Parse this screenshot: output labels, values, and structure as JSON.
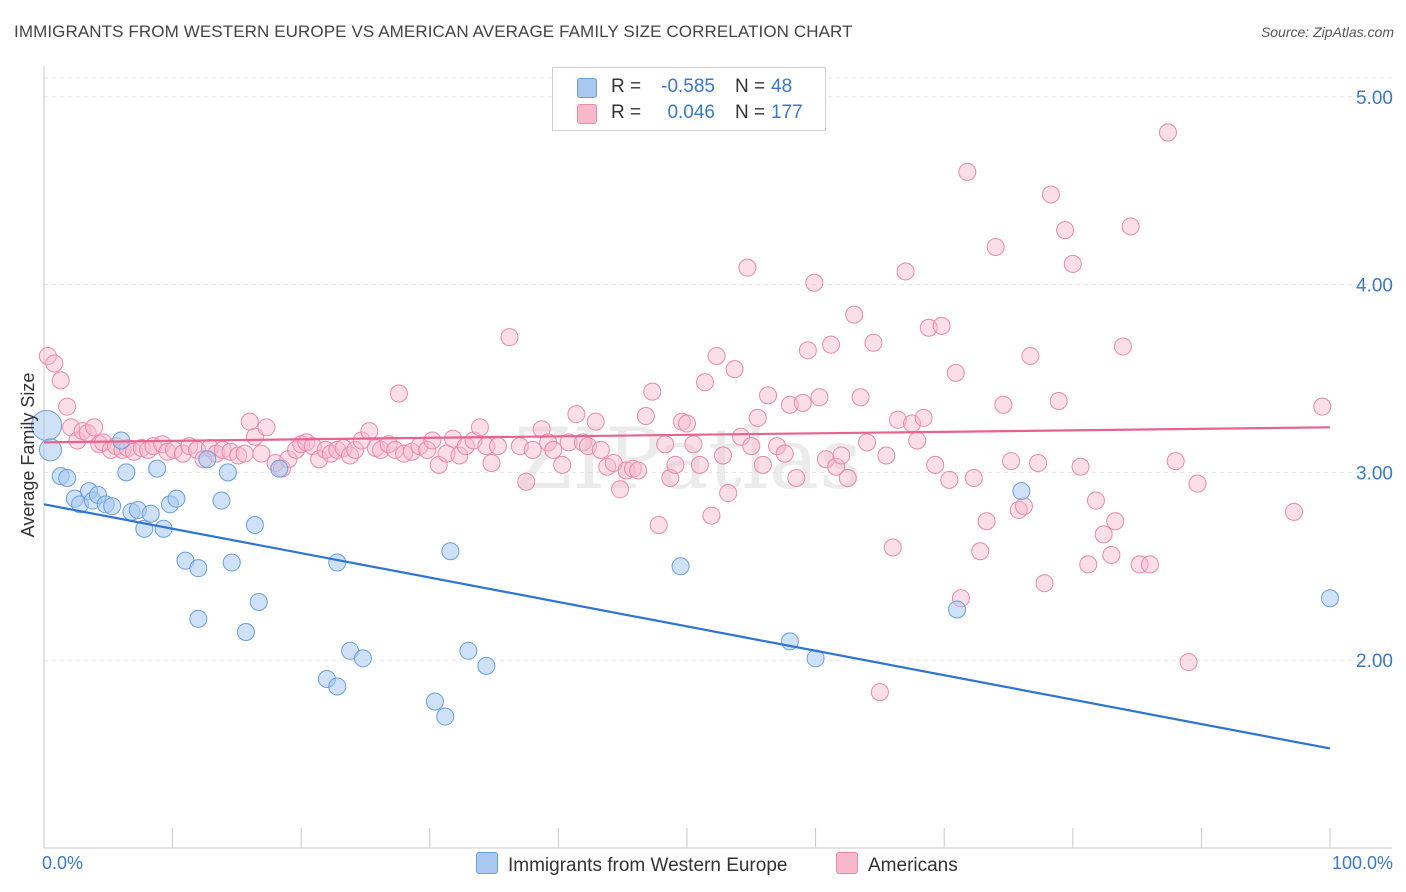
{
  "title": "IMMIGRANTS FROM WESTERN EUROPE VS AMERICAN AVERAGE FAMILY SIZE CORRELATION CHART",
  "source": "Source: ZipAtlas.com",
  "watermark": "ZIPatlas",
  "legend": {
    "rows": [
      {
        "r_label": "R =",
        "r_value": "-0.585",
        "n_label": "N =",
        "n_value": "48",
        "color": "#a8c8f0",
        "border": "#6a9fd8"
      },
      {
        "r_label": "R =",
        "r_value": "0.046",
        "n_label": "N =",
        "n_value": "177",
        "color": "#f7b8cb",
        "border": "#e88aa8"
      }
    ]
  },
  "bottom_legend": {
    "series1": "Immigrants from Western Europe",
    "series2": "Americans"
  },
  "chart_data": {
    "type": "scatter",
    "title": "IMMIGRANTS FROM WESTERN EUROPE VS AMERICAN AVERAGE FAMILY SIZE CORRELATION CHART",
    "xlabel": "",
    "ylabel": "Average Family Size",
    "xlim": [
      0,
      100
    ],
    "ylim": [
      1.0,
      5.1
    ],
    "x_tick_labels": [
      "0.0%",
      "100.0%"
    ],
    "y_ticks": [
      2.0,
      3.0,
      4.0,
      5.0
    ],
    "y_tick_labels": [
      "2.00",
      "3.00",
      "4.00",
      "5.00"
    ],
    "grid": true,
    "series": [
      {
        "name": "Immigrants from Western Europe",
        "color": "#a8c8f0",
        "stroke": "#6a9fd8",
        "trend_color": "#2f74d0",
        "trend": {
          "x": [
            0,
            100
          ],
          "y": [
            2.83,
            1.53
          ]
        },
        "points": [
          [
            0.2,
            3.25
          ],
          [
            0.5,
            3.12
          ],
          [
            1.3,
            2.98
          ],
          [
            1.8,
            2.97
          ],
          [
            2.4,
            2.86
          ],
          [
            2.8,
            2.83
          ],
          [
            3.5,
            2.9
          ],
          [
            3.8,
            2.85
          ],
          [
            4.2,
            2.88
          ],
          [
            4.8,
            2.83
          ],
          [
            5.3,
            2.82
          ],
          [
            6.0,
            3.17
          ],
          [
            6.4,
            3.0
          ],
          [
            6.8,
            2.79
          ],
          [
            7.3,
            2.8
          ],
          [
            7.8,
            2.7
          ],
          [
            8.3,
            2.78
          ],
          [
            8.8,
            3.02
          ],
          [
            9.3,
            2.7
          ],
          [
            9.8,
            2.83
          ],
          [
            10.3,
            2.86
          ],
          [
            11.0,
            2.53
          ],
          [
            12.0,
            2.49
          ],
          [
            12.0,
            2.22
          ],
          [
            12.7,
            3.07
          ],
          [
            13.8,
            2.85
          ],
          [
            14.3,
            3.0
          ],
          [
            14.6,
            2.52
          ],
          [
            15.7,
            2.15
          ],
          [
            16.4,
            2.72
          ],
          [
            16.7,
            2.31
          ],
          [
            18.3,
            3.02
          ],
          [
            22.0,
            1.9
          ],
          [
            22.8,
            1.86
          ],
          [
            22.8,
            2.52
          ],
          [
            23.8,
            2.05
          ],
          [
            24.8,
            2.01
          ],
          [
            30.4,
            1.78
          ],
          [
            31.2,
            1.7
          ],
          [
            31.6,
            2.58
          ],
          [
            33.0,
            2.05
          ],
          [
            34.4,
            1.97
          ],
          [
            49.5,
            2.5
          ],
          [
            58.0,
            2.1
          ],
          [
            60.0,
            2.01
          ],
          [
            71.0,
            2.27
          ],
          [
            76.0,
            2.9
          ],
          [
            100.0,
            2.33
          ]
        ]
      },
      {
        "name": "Americans",
        "color": "#f7b8cb",
        "stroke": "#e88aa8",
        "trend_color": "#e8628e",
        "trend": {
          "x": [
            0,
            100
          ],
          "y": [
            3.16,
            3.24
          ]
        },
        "points": [
          [
            0.3,
            3.62
          ],
          [
            0.8,
            3.58
          ],
          [
            1.3,
            3.49
          ],
          [
            1.8,
            3.35
          ],
          [
            2.1,
            3.24
          ],
          [
            2.6,
            3.17
          ],
          [
            3.0,
            3.22
          ],
          [
            3.4,
            3.21
          ],
          [
            3.9,
            3.24
          ],
          [
            4.3,
            3.15
          ],
          [
            4.6,
            3.16
          ],
          [
            5.2,
            3.12
          ],
          [
            5.6,
            3.14
          ],
          [
            6.1,
            3.12
          ],
          [
            6.5,
            3.13
          ],
          [
            7.0,
            3.11
          ],
          [
            7.6,
            3.13
          ],
          [
            8.1,
            3.12
          ],
          [
            8.5,
            3.14
          ],
          [
            9.2,
            3.15
          ],
          [
            9.6,
            3.11
          ],
          [
            10.1,
            3.12
          ],
          [
            10.8,
            3.1
          ],
          [
            11.3,
            3.14
          ],
          [
            11.9,
            3.12
          ],
          [
            12.4,
            3.07
          ],
          [
            12.9,
            3.13
          ],
          [
            13.4,
            3.1
          ],
          [
            13.9,
            3.12
          ],
          [
            14.5,
            3.11
          ],
          [
            15.1,
            3.09
          ],
          [
            15.6,
            3.1
          ],
          [
            16.0,
            3.27
          ],
          [
            16.4,
            3.19
          ],
          [
            16.9,
            3.1
          ],
          [
            17.3,
            3.24
          ],
          [
            18.0,
            3.05
          ],
          [
            18.5,
            3.02
          ],
          [
            19.0,
            3.07
          ],
          [
            19.6,
            3.12
          ],
          [
            20.0,
            3.15
          ],
          [
            20.4,
            3.16
          ],
          [
            20.9,
            3.14
          ],
          [
            21.4,
            3.07
          ],
          [
            21.9,
            3.12
          ],
          [
            22.3,
            3.1
          ],
          [
            22.8,
            3.12
          ],
          [
            23.3,
            3.13
          ],
          [
            23.8,
            3.09
          ],
          [
            24.2,
            3.12
          ],
          [
            24.7,
            3.17
          ],
          [
            25.3,
            3.22
          ],
          [
            25.8,
            3.13
          ],
          [
            26.2,
            3.12
          ],
          [
            26.8,
            3.15
          ],
          [
            27.3,
            3.12
          ],
          [
            27.6,
            3.42
          ],
          [
            28.0,
            3.1
          ],
          [
            28.6,
            3.11
          ],
          [
            29.2,
            3.14
          ],
          [
            29.8,
            3.12
          ],
          [
            30.2,
            3.17
          ],
          [
            30.7,
            3.04
          ],
          [
            31.3,
            3.1
          ],
          [
            31.8,
            3.18
          ],
          [
            32.3,
            3.09
          ],
          [
            32.8,
            3.14
          ],
          [
            33.4,
            3.17
          ],
          [
            33.9,
            3.24
          ],
          [
            34.4,
            3.14
          ],
          [
            34.8,
            3.05
          ],
          [
            35.3,
            3.14
          ],
          [
            36.2,
            3.72
          ],
          [
            37.0,
            3.14
          ],
          [
            37.5,
            2.95
          ],
          [
            38.0,
            3.12
          ],
          [
            38.7,
            3.23
          ],
          [
            39.2,
            3.16
          ],
          [
            39.6,
            3.12
          ],
          [
            40.3,
            3.04
          ],
          [
            40.8,
            3.16
          ],
          [
            41.4,
            3.31
          ],
          [
            41.9,
            3.16
          ],
          [
            42.3,
            3.14
          ],
          [
            42.9,
            3.27
          ],
          [
            43.3,
            3.12
          ],
          [
            43.8,
            3.03
          ],
          [
            44.3,
            3.05
          ],
          [
            44.8,
            2.91
          ],
          [
            45.3,
            3.01
          ],
          [
            45.8,
            3.02
          ],
          [
            46.2,
            3.01
          ],
          [
            46.8,
            3.3
          ],
          [
            47.3,
            3.43
          ],
          [
            47.8,
            2.72
          ],
          [
            48.3,
            3.15
          ],
          [
            48.7,
            2.97
          ],
          [
            49.1,
            3.04
          ],
          [
            49.6,
            3.27
          ],
          [
            50.0,
            3.26
          ],
          [
            50.5,
            3.15
          ],
          [
            51.0,
            3.04
          ],
          [
            51.4,
            3.48
          ],
          [
            51.9,
            2.77
          ],
          [
            52.3,
            3.62
          ],
          [
            52.8,
            3.09
          ],
          [
            53.2,
            2.89
          ],
          [
            53.7,
            3.55
          ],
          [
            54.2,
            3.19
          ],
          [
            54.7,
            4.09
          ],
          [
            55.0,
            3.14
          ],
          [
            55.5,
            3.29
          ],
          [
            55.9,
            3.04
          ],
          [
            56.3,
            3.41
          ],
          [
            57.0,
            3.14
          ],
          [
            57.6,
            3.1
          ],
          [
            58.0,
            3.36
          ],
          [
            58.5,
            2.97
          ],
          [
            59.0,
            3.37
          ],
          [
            59.4,
            3.65
          ],
          [
            59.9,
            4.01
          ],
          [
            60.3,
            3.4
          ],
          [
            60.8,
            3.07
          ],
          [
            61.2,
            3.68
          ],
          [
            61.6,
            3.03
          ],
          [
            62.0,
            3.09
          ],
          [
            62.5,
            2.97
          ],
          [
            63.0,
            3.84
          ],
          [
            63.5,
            3.4
          ],
          [
            64.0,
            3.16
          ],
          [
            64.5,
            3.69
          ],
          [
            65.0,
            1.83
          ],
          [
            65.5,
            3.09
          ],
          [
            66.0,
            2.6
          ],
          [
            66.4,
            3.28
          ],
          [
            67.0,
            4.07
          ],
          [
            67.5,
            3.26
          ],
          [
            67.9,
            3.17
          ],
          [
            68.4,
            3.29
          ],
          [
            68.8,
            3.77
          ],
          [
            69.3,
            3.04
          ],
          [
            69.8,
            3.78
          ],
          [
            70.4,
            2.96
          ],
          [
            70.9,
            3.53
          ],
          [
            71.3,
            2.33
          ],
          [
            71.8,
            4.6
          ],
          [
            72.3,
            2.97
          ],
          [
            72.8,
            2.58
          ],
          [
            73.3,
            2.74
          ],
          [
            74.0,
            4.2
          ],
          [
            74.6,
            3.36
          ],
          [
            75.2,
            3.06
          ],
          [
            75.8,
            2.8
          ],
          [
            76.2,
            2.82
          ],
          [
            76.7,
            3.62
          ],
          [
            77.3,
            3.05
          ],
          [
            77.8,
            2.41
          ],
          [
            78.3,
            4.48
          ],
          [
            78.9,
            3.38
          ],
          [
            79.4,
            4.29
          ],
          [
            80.0,
            4.11
          ],
          [
            80.6,
            3.03
          ],
          [
            81.2,
            2.51
          ],
          [
            81.8,
            2.85
          ],
          [
            82.4,
            2.67
          ],
          [
            83.0,
            2.56
          ],
          [
            83.3,
            2.74
          ],
          [
            83.9,
            3.67
          ],
          [
            84.5,
            4.31
          ],
          [
            85.2,
            2.51
          ],
          [
            86.0,
            2.51
          ],
          [
            87.4,
            4.81
          ],
          [
            88.0,
            3.06
          ],
          [
            89.7,
            2.94
          ],
          [
            99.4,
            3.35
          ],
          [
            97.2,
            2.79
          ],
          [
            89.0,
            1.99
          ]
        ]
      }
    ]
  }
}
